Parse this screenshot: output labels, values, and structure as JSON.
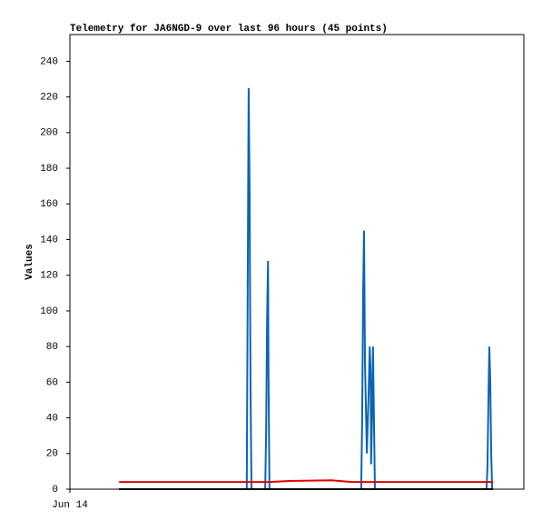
{
  "chart_data": {
    "type": "line",
    "title": "Telemetry for JA6NGD-9 over last 96 hours (45 points)",
    "y_label": "Values",
    "x": [
      10.4,
      14.0,
      23.6,
      33.2,
      37.4,
      37.6,
      37.8,
      38.0,
      38.2,
      38.4,
      41.3,
      41.5,
      41.7,
      41.9,
      42.0,
      42.2,
      46.3,
      55.3,
      59.7,
      61.6,
      61.8,
      62.0,
      62.2,
      62.4,
      62.8,
      63.2,
      63.4,
      63.6,
      63.7,
      63.9,
      64.1,
      64.3,
      64.5,
      67.8,
      73.5,
      79.3,
      85.1,
      88.1,
      88.3,
      88.5,
      88.7,
      88.9,
      89.1,
      89.3,
      89.5
    ],
    "series": [
      {
        "color": "#0a64b4",
        "values": [
          0,
          0,
          0,
          0,
          0,
          112,
          225,
          168,
          56,
          0,
          0,
          32,
          96,
          128,
          64,
          0,
          0,
          0,
          0,
          0,
          36,
          108,
          145,
          72,
          20,
          56,
          80,
          66,
          14,
          40,
          80,
          40,
          0,
          0,
          0,
          0,
          0,
          0,
          12,
          48,
          80,
          60,
          20,
          0,
          0
        ]
      },
      {
        "color": "#e60000",
        "values": [
          4,
          4,
          4,
          4,
          4,
          4,
          4,
          4,
          4,
          4,
          4,
          4,
          4,
          4,
          4,
          4,
          4.6,
          5,
          4,
          4,
          4,
          4,
          4,
          4,
          4,
          4,
          4,
          4,
          4,
          4,
          4,
          4,
          4,
          4,
          4,
          4,
          4,
          4,
          4,
          4,
          4,
          4,
          4,
          4,
          4
        ]
      },
      {
        "color": "#000000",
        "values": [
          0,
          0,
          0,
          0,
          0,
          0,
          0,
          0,
          0,
          0,
          0,
          0,
          0,
          0,
          0,
          0,
          0,
          0,
          0,
          0,
          0,
          0,
          0,
          0,
          0,
          0,
          0,
          0,
          0,
          0,
          0,
          0,
          0,
          0,
          0,
          0,
          0,
          0,
          0,
          0,
          0,
          0,
          0,
          0,
          0
        ]
      }
    ],
    "xlim": [
      0,
      96
    ],
    "xticks": [
      {
        "value": 0,
        "label": "Jun 14"
      }
    ],
    "ylim": [
      0,
      255
    ],
    "yticks": [
      0,
      20,
      40,
      60,
      80,
      100,
      120,
      140,
      160,
      180,
      200,
      220,
      240
    ],
    "grid": false
  }
}
